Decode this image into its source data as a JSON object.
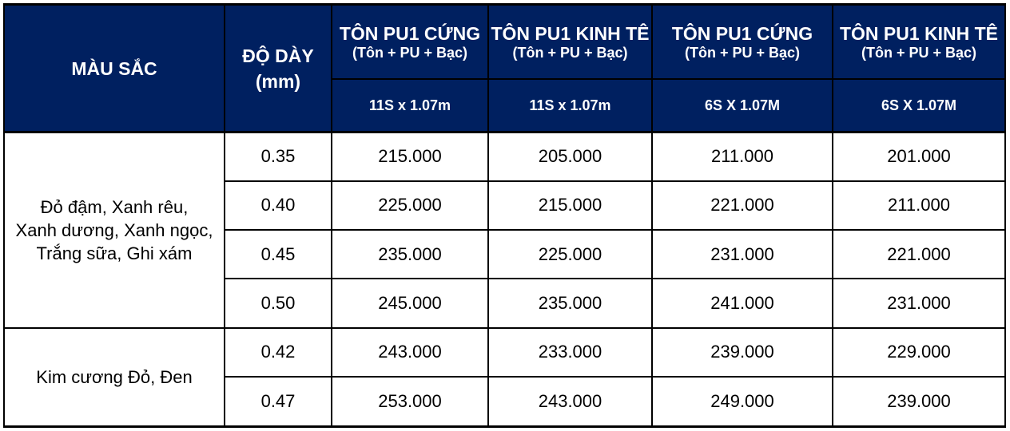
{
  "document": {
    "type": "price-table",
    "colors": {
      "header_background": "#002060",
      "header_text": "#ffffff",
      "border": "#000000",
      "body_text": "#000000",
      "body_background": "#ffffff"
    },
    "header": {
      "color_column_label": "MÀU SẮC",
      "thickness_column_label": "ĐỘ DÀY\n(mm)",
      "products": [
        {
          "title": "TÔN PU1 CỨNG",
          "subtitle": "(Tôn + PU + Bạc)",
          "size": "11S x 1.07m"
        },
        {
          "title": "TÔN PU1 KINH TÊ",
          "subtitle": "(Tôn + PU + Bạc)",
          "size": "11S x 1.07m"
        },
        {
          "title": "TÔN PU1 CỨNG",
          "subtitle": "(Tôn + PU + Bạc)",
          "size": "6S X 1.07M"
        },
        {
          "title": "TÔN PU1 KINH TÊ",
          "subtitle": "(Tôn + PU + Bạc)",
          "size": "6S X 1.07M"
        }
      ]
    },
    "groups": [
      {
        "color_names": "Đỏ đậm, Xanh rêu,\nXanh dương, Xanh ngọc,\nTrắng sữa, Ghi xám",
        "rows": [
          {
            "thickness": "0.35",
            "prices": [
              "215.000",
              "205.000",
              "211.000",
              "201.000"
            ]
          },
          {
            "thickness": "0.40",
            "prices": [
              "225.000",
              "215.000",
              "221.000",
              "211.000"
            ]
          },
          {
            "thickness": "0.45",
            "prices": [
              "235.000",
              "225.000",
              "231.000",
              "221.000"
            ]
          },
          {
            "thickness": "0.50",
            "prices": [
              "245.000",
              "235.000",
              "241.000",
              "231.000"
            ]
          }
        ]
      },
      {
        "color_names": "Kim cương Đỏ, Đen",
        "rows": [
          {
            "thickness": "0.42",
            "prices": [
              "243.000",
              "233.000",
              "239.000",
              "229.000"
            ]
          },
          {
            "thickness": "0.47",
            "prices": [
              "253.000",
              "243.000",
              "249.000",
              "239.000"
            ]
          }
        ]
      }
    ]
  }
}
